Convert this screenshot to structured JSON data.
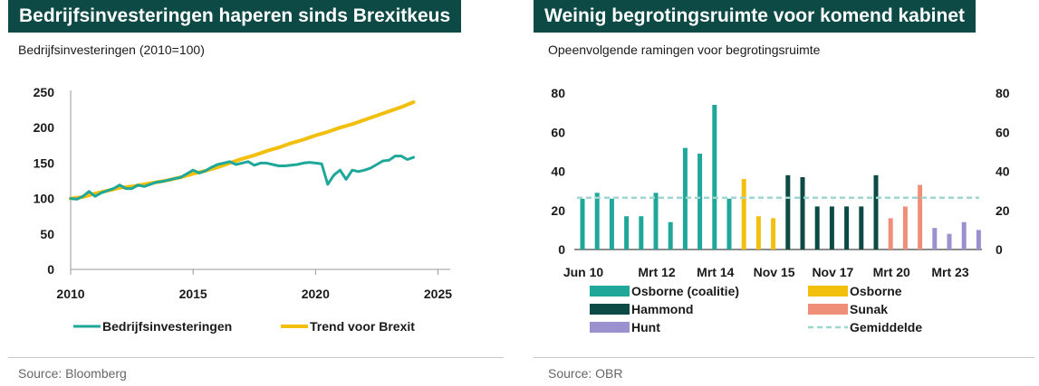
{
  "left": {
    "title": "Bedrijfsinvesteringen haperen sinds Brexitkeus",
    "subtitle": "Bedrijfsinvesteringen (2010=100)",
    "source": "Source: Bloomberg",
    "chart_data": {
      "type": "line",
      "title": "Bedrijfsinvesteringen haperen sinds Brexitkeus",
      "ylabel": "Bedrijfsinvesteringen (2010=100)",
      "xlim": [
        2010,
        2025.5
      ],
      "ylim": [
        0,
        250
      ],
      "yticks": [
        0,
        50,
        100,
        150,
        200,
        250
      ],
      "xticks": [
        2010,
        2015,
        2020,
        2025
      ],
      "legend": [
        "Bedrijfsinvesteringen",
        "Trend voor Brexit"
      ],
      "series": [
        {
          "name": "Bedrijfsinvesteringen",
          "color": "#1fa89a",
          "x": [
            2010,
            2010.25,
            2010.5,
            2010.75,
            2011,
            2011.25,
            2011.5,
            2011.75,
            2012,
            2012.25,
            2012.5,
            2012.75,
            2013,
            2013.25,
            2013.5,
            2013.75,
            2014,
            2014.25,
            2014.5,
            2014.75,
            2015,
            2015.25,
            2015.5,
            2015.75,
            2016,
            2016.25,
            2016.5,
            2016.75,
            2017,
            2017.25,
            2017.5,
            2017.75,
            2018,
            2018.25,
            2018.5,
            2018.75,
            2019,
            2019.25,
            2019.5,
            2019.75,
            2020,
            2020.25,
            2020.5,
            2020.75,
            2021,
            2021.25,
            2021.5,
            2021.75,
            2022,
            2022.25,
            2022.5,
            2022.75,
            2023,
            2023.25,
            2023.5,
            2023.75,
            2024
          ],
          "values": [
            100,
            99,
            103,
            110,
            103,
            108,
            111,
            114,
            119,
            114,
            114,
            119,
            117,
            120,
            123,
            124,
            126,
            128,
            130,
            135,
            140,
            136,
            139,
            144,
            148,
            150,
            152,
            148,
            150,
            152,
            147,
            150,
            150,
            148,
            146,
            146,
            147,
            148,
            150,
            151,
            150,
            149,
            120,
            133,
            140,
            127,
            140,
            138,
            140,
            143,
            148,
            153,
            154,
            160,
            160,
            155,
            158
          ]
        },
        {
          "name": "Trend voor Brexit",
          "color": "#f2bf0d",
          "x": [
            2010,
            2010.5,
            2011,
            2011.5,
            2012,
            2012.5,
            2013,
            2013.5,
            2014,
            2014.5,
            2015,
            2015.5,
            2016,
            2016.5,
            2017,
            2017.5,
            2018,
            2018.5,
            2019,
            2019.5,
            2020,
            2020.5,
            2021,
            2021.5,
            2022,
            2022.5,
            2023,
            2023.5,
            2024
          ],
          "values": [
            100,
            102,
            107,
            111,
            115,
            117,
            120,
            123,
            126,
            130,
            135,
            139,
            144,
            150,
            156,
            161,
            167,
            172,
            178,
            183,
            189,
            194,
            200,
            205,
            211,
            217,
            223,
            229,
            236
          ]
        }
      ]
    },
    "legend": [
      {
        "label": "Bedrijfsinvesteringen",
        "color": "#1fa89a"
      },
      {
        "label": "Trend voor Brexit",
        "color": "#f2bf0d"
      }
    ]
  },
  "right": {
    "title": "Weinig begrotingsruimte voor komend kabinet",
    "subtitle": "Opeenvolgende ramingen voor begrotingsruimte",
    "source": "Source: OBR",
    "chart_data": {
      "type": "bar",
      "title": "Weinig begrotingsruimte voor komend kabinet",
      "ylabel": "Opeenvolgende ramingen voor begrotingsruimte",
      "ylim": [
        0,
        80
      ],
      "yticks": [
        0,
        20,
        40,
        60,
        80
      ],
      "xtick_labels": [
        "Jun 10",
        "Mrt 12",
        "Mrt 14",
        "Nov 15",
        "Nov 17",
        "Mrt 20",
        "Mrt 23"
      ],
      "xtick_index": [
        0,
        5,
        9,
        13,
        17,
        21,
        25
      ],
      "average": 26.5,
      "series": [
        {
          "name": "Osborne (coalitie)",
          "color": "#1fa89a",
          "index": [
            0,
            1,
            2,
            3,
            4,
            5,
            6,
            7,
            8,
            9,
            10
          ],
          "values": [
            26,
            29,
            26,
            17,
            17,
            29,
            14,
            52,
            49,
            74,
            26
          ]
        },
        {
          "name": "Osborne",
          "color": "#f2bf0d",
          "index": [
            11,
            12,
            13
          ],
          "values": [
            36,
            17,
            16
          ]
        },
        {
          "name": "Hammond",
          "color": "#0d4a45",
          "index": [
            14,
            15,
            16,
            17,
            18,
            19,
            20
          ],
          "values": [
            38,
            37,
            22,
            22,
            22,
            22,
            38
          ]
        },
        {
          "name": "Sunak",
          "color": "#ef8f7a",
          "index": [
            21,
            22,
            23
          ],
          "values": [
            16,
            22,
            33
          ]
        },
        {
          "name": "Hunt",
          "color": "#9b91cf",
          "index": [
            24,
            25,
            26,
            27
          ],
          "values": [
            11,
            8,
            14,
            10
          ]
        }
      ]
    },
    "legend": [
      {
        "label": "Osborne (coalitie)",
        "color": "#1fa89a",
        "kind": "box"
      },
      {
        "label": "Osborne",
        "color": "#f2bf0d",
        "kind": "box"
      },
      {
        "label": "Hammond",
        "color": "#0d4a45",
        "kind": "box"
      },
      {
        "label": "Sunak",
        "color": "#ef8f7a",
        "kind": "box"
      },
      {
        "label": "Hunt",
        "color": "#9b91cf",
        "kind": "box"
      },
      {
        "label": "Gemiddelde",
        "color": "#9fd6cf",
        "kind": "dash"
      }
    ]
  }
}
